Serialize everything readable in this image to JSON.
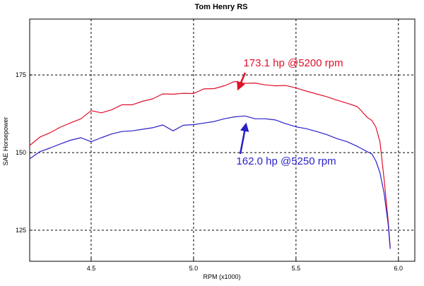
{
  "chart_data": {
    "type": "line",
    "title": "Tom Henry RS",
    "xlabel": "RPM (x1000)",
    "ylabel": "SAE Horsepower",
    "xlim": [
      4.2,
      6.08
    ],
    "ylim": [
      115,
      193
    ],
    "xticks": [
      4.5,
      5.0,
      5.5,
      6.0
    ],
    "xtick_labels": [
      "4.5",
      "5.0",
      "5.5",
      "6.0"
    ],
    "yticks": [
      125,
      150,
      175
    ],
    "ytick_labels": [
      "125",
      "150",
      "175"
    ],
    "grid": true,
    "series": [
      {
        "color": "#e0102a",
        "x": [
          4.2,
          4.25,
          4.3,
          4.35,
          4.4,
          4.45,
          4.5,
          4.55,
          4.6,
          4.65,
          4.7,
          4.75,
          4.8,
          4.85,
          4.9,
          4.95,
          5.0,
          5.05,
          5.1,
          5.15,
          5.2,
          5.25,
          5.3,
          5.35,
          5.4,
          5.45,
          5.5,
          5.55,
          5.6,
          5.65,
          5.7,
          5.75,
          5.8,
          5.85,
          5.87,
          5.89,
          5.91,
          5.93,
          5.95,
          5.96
        ],
        "y": [
          152.3,
          155.0,
          156.4,
          158.2,
          159.6,
          160.9,
          163.5,
          162.8,
          163.8,
          165.4,
          165.4,
          166.5,
          167.3,
          168.9,
          168.8,
          169.1,
          169.0,
          170.5,
          170.6,
          171.5,
          172.9,
          172.3,
          172.4,
          171.8,
          171.5,
          171.6,
          170.8,
          169.8,
          168.9,
          168.0,
          166.9,
          165.9,
          164.8,
          161.2,
          160.4,
          158.2,
          153.5,
          141.5,
          128.0,
          119.5
        ]
      },
      {
        "color": "#2a1fc8",
        "x": [
          4.2,
          4.25,
          4.3,
          4.35,
          4.4,
          4.45,
          4.5,
          4.55,
          4.6,
          4.65,
          4.7,
          4.75,
          4.8,
          4.85,
          4.9,
          4.95,
          5.0,
          5.05,
          5.1,
          5.15,
          5.2,
          5.25,
          5.3,
          5.35,
          5.4,
          5.45,
          5.5,
          5.55,
          5.6,
          5.65,
          5.7,
          5.75,
          5.8,
          5.85,
          5.87,
          5.89,
          5.91,
          5.93,
          5.95,
          5.96
        ],
        "y": [
          148.0,
          150.3,
          151.5,
          152.8,
          154.0,
          154.8,
          153.5,
          154.8,
          156.0,
          156.8,
          157.0,
          157.5,
          158.0,
          158.9,
          157.0,
          158.8,
          159.0,
          159.5,
          160.0,
          160.9,
          161.5,
          161.8,
          160.9,
          160.9,
          160.5,
          159.3,
          158.3,
          157.7,
          156.8,
          155.8,
          154.5,
          153.5,
          152.0,
          150.2,
          149.6,
          147.3,
          143.5,
          137.0,
          127.0,
          119.0
        ]
      }
    ],
    "annotations": [
      {
        "text": "173.1 hp @5200 rpm",
        "color": "#e0102a",
        "x": 5.2,
        "y": 173.1
      },
      {
        "text": "162.0 hp @5250 rpm",
        "color": "#2a1fc8",
        "x": 5.25,
        "y": 162.0
      }
    ]
  }
}
